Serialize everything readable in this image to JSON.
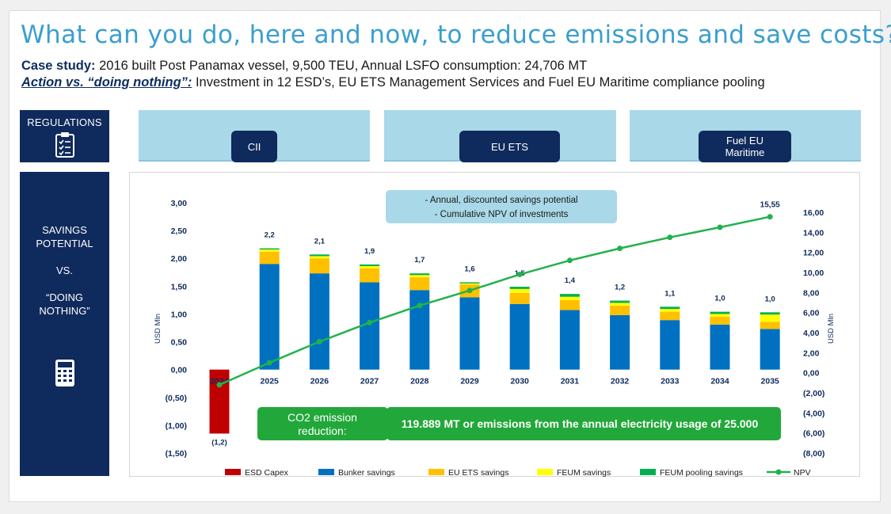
{
  "title": "What can you do, here and now, to reduce emissions and save costs?",
  "subtitle": {
    "case_label": "Case study:",
    "case_text": " 2016 built Post Panamax vessel, 9,500 TEU, Annual LSFO consumption: 24,706 MT",
    "action_label": "Action vs. “doing nothing”:",
    "action_text": " Investment in 12 ESD’s, EU ETS Management Services and Fuel EU Maritime compliance pooling"
  },
  "sidebar": {
    "regulations_label": "REGULATIONS",
    "savings_line1": "SAVINGS",
    "savings_line2": "POTENTIAL",
    "savings_line3": "VS.",
    "savings_line4": "“DOING",
    "savings_line5": "NOTHING”",
    "regulations_icon": "clipboard-checklist-icon",
    "savings_icon": "calculator-icon"
  },
  "regulations": [
    {
      "label_line1": "CII",
      "label_line2": ""
    },
    {
      "label_line1": "EU ETS",
      "label_line2": ""
    },
    {
      "label_line1": "Fuel EU",
      "label_line2": "Maritime"
    }
  ],
  "chart_note": {
    "line1": "- Annual, discounted savings potential",
    "line2": "- Cumulative NPV of investments"
  },
  "co2_box": {
    "label_line1": "CO2 emission",
    "label_line2": "reduction:",
    "text": "119.889 MT or emissions from the annual electricity usage of 25.000"
  },
  "colors": {
    "capex": "#c00000",
    "bunker": "#0070c0",
    "euets": "#ffc000",
    "feum": "#ffff00",
    "pooling": "#00b050",
    "npv": "#22b24c",
    "navy": "#0f2a5c",
    "lightblue": "#a9d9e8",
    "title": "#3a9fce"
  },
  "chart_data": {
    "type": "bar",
    "stacked": true,
    "categories": [
      "2024",
      "2025",
      "2026",
      "2027",
      "2028",
      "2029",
      "2030",
      "2031",
      "2032",
      "2033",
      "2034",
      "2035"
    ],
    "series": [
      {
        "name": "ESD Capex",
        "values": [
          -1.15,
          0,
          0,
          0,
          0,
          0,
          0,
          0,
          0,
          0,
          0,
          0
        ]
      },
      {
        "name": "Bunker savings",
        "values": [
          0,
          1.9,
          1.73,
          1.57,
          1.43,
          1.3,
          1.18,
          1.07,
          0.98,
          0.89,
          0.81,
          0.73
        ]
      },
      {
        "name": "EU ETS savings",
        "values": [
          0,
          0.22,
          0.27,
          0.25,
          0.23,
          0.23,
          0.2,
          0.18,
          0.17,
          0.15,
          0.14,
          0.13
        ]
      },
      {
        "name": "FEUM savings",
        "values": [
          0,
          0.04,
          0.04,
          0.04,
          0.04,
          0.02,
          0.07,
          0.06,
          0.05,
          0.05,
          0.05,
          0.13
        ]
      },
      {
        "name": "FEUM pooling savings",
        "values": [
          0,
          0.02,
          0.03,
          0.03,
          0.03,
          0.02,
          0.04,
          0.05,
          0.04,
          0.04,
          0.04,
          0.04
        ]
      }
    ],
    "bar_labels": [
      "(1,2)",
      "2,2",
      "2,1",
      "1,9",
      "1,7",
      "1,6",
      "1,5",
      "1,4",
      "1,2",
      "1,1",
      "1,0",
      "1,0"
    ],
    "npv": {
      "name": "NPV",
      "values": [
        -1.2,
        1.0,
        3.1,
        5.0,
        6.7,
        8.2,
        9.8,
        11.2,
        12.4,
        13.5,
        14.5,
        15.55
      ],
      "end_label": "15,55"
    },
    "y_left": {
      "label": "USD Mln",
      "range": [
        -1.5,
        3.0
      ],
      "ticks": [
        "(1,50)",
        "(1,00)",
        "(0,50)",
        "0,00",
        "0,50",
        "1,00",
        "1,50",
        "2,00",
        "2,50",
        "3,00"
      ]
    },
    "y_right": {
      "label": "USD Mln",
      "range": [
        -8,
        16
      ],
      "ticks": [
        "(8,00)",
        "(6,00)",
        "(4,00)",
        "(2,00)",
        "0,00",
        "2,00",
        "4,00",
        "6,00",
        "8,00",
        "10,00",
        "12,00",
        "14,00",
        "16,00"
      ]
    },
    "legend_position": "bottom",
    "grid": false
  }
}
